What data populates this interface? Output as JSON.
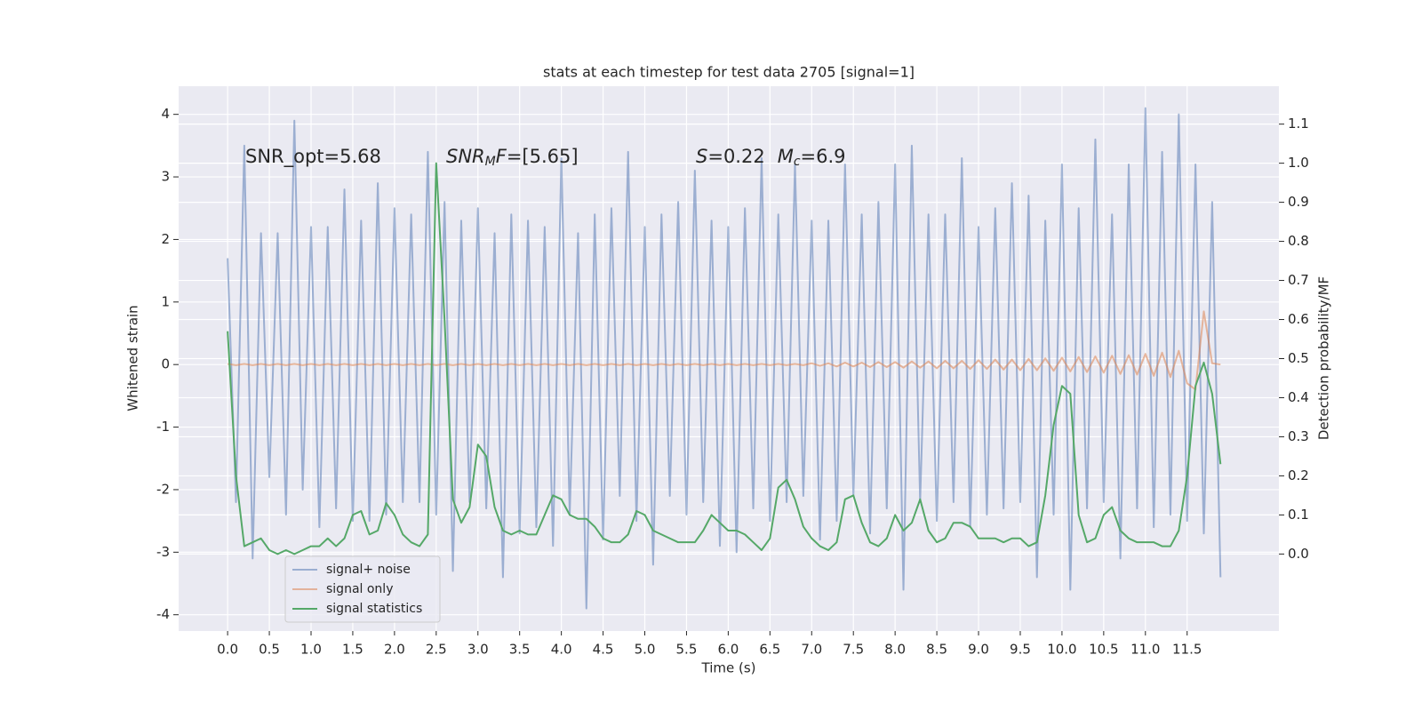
{
  "chart_data": {
    "type": "line",
    "title": "stats at each timestep for test data 2705 [signal=1]",
    "xlabel": "Time (s)",
    "ylabel": "Whitened strain",
    "y2label": "Detection probability/MF",
    "annotations": [
      "SNR_opt=5.68",
      [
        "SNR",
        "M",
        "F",
        "=[5.65]"
      ],
      [
        "S",
        "=0.22",
        "M",
        "c",
        "=6.9"
      ]
    ],
    "grid": true,
    "legend": "lower left",
    "xlim": [
      -0.587,
      12.6
    ],
    "ylim": [
      -4.26,
      4.45
    ],
    "y2lim": [
      -0.197,
      1.197
    ],
    "xticks": [
      {
        "value": 0,
        "label": "0.0"
      },
      0.5,
      {
        "value": 1,
        "label": "1.0"
      },
      1.5,
      {
        "value": 2,
        "label": "2.0"
      },
      2.5,
      {
        "value": 3,
        "label": "3.0"
      },
      3.5,
      {
        "value": 4,
        "label": "4.0"
      },
      4.5,
      {
        "value": 5,
        "label": "5.0"
      },
      5.5,
      {
        "value": 6,
        "label": "6.0"
      },
      6.5,
      {
        "value": 7,
        "label": "7.0"
      },
      7.5,
      {
        "value": 8,
        "label": "8.0"
      },
      8.5,
      {
        "value": 9,
        "label": "9.0"
      },
      9.5,
      {
        "value": 10,
        "label": "10.0"
      },
      10.5,
      {
        "value": 11,
        "label": "11.0"
      },
      11.5
    ],
    "yticks": [
      4,
      3,
      2,
      1,
      0,
      -1,
      -2,
      -3,
      -4
    ],
    "y2ticks": [
      {
        "value": 0,
        "label": "0.0"
      },
      0.1,
      0.2,
      0.3,
      0.4,
      0.5,
      0.6,
      0.7,
      0.8,
      0.9,
      {
        "value": 1,
        "label": "1.0"
      },
      1.1
    ],
    "x": [
      0,
      0.1,
      0.2,
      0.3,
      0.4,
      0.5,
      0.6,
      0.7,
      0.8,
      0.9,
      1,
      1.1,
      1.2,
      1.3,
      1.4,
      1.5,
      1.6,
      1.7,
      1.8,
      1.9,
      2,
      2.1,
      2.2,
      2.3,
      2.4,
      2.5,
      2.6,
      2.7,
      2.8,
      2.9,
      3,
      3.1,
      3.2,
      3.3,
      3.4,
      3.5,
      3.6,
      3.7,
      3.8,
      3.9,
      4,
      4.1,
      4.2,
      4.3,
      4.4,
      4.5,
      4.6,
      4.7,
      4.8,
      4.9,
      5,
      5.1,
      5.2,
      5.3,
      5.4,
      5.5,
      5.6,
      5.7,
      5.8,
      5.9,
      6,
      6.1,
      6.2,
      6.3,
      6.4,
      6.5,
      6.6,
      6.7,
      6.8,
      6.9,
      7,
      7.1,
      7.2,
      7.3,
      7.4,
      7.5,
      7.6,
      7.7,
      7.8,
      7.9,
      8,
      8.1,
      8.2,
      8.3,
      8.4,
      8.5,
      8.6,
      8.7,
      8.8,
      8.9,
      9,
      9.1,
      9.2,
      9.3,
      9.4,
      9.5,
      9.6,
      9.7,
      9.8,
      9.9,
      10,
      10.1,
      10.2,
      10.3,
      10.4,
      10.5,
      10.6,
      10.7,
      10.8,
      10.9,
      11,
      11.1,
      11.2,
      11.3,
      11.4,
      11.5,
      11.6,
      11.7,
      11.8,
      11.9
    ],
    "series": [
      {
        "name": "signal+ noise",
        "color": "#4c72b0",
        "axis": "y",
        "values": [
          1.7,
          -2.2,
          3.5,
          -3.1,
          2.1,
          -1.8,
          2.1,
          -2.4,
          3.9,
          -2.0,
          2.2,
          -2.6,
          2.2,
          -2.3,
          2.8,
          -2.5,
          2.3,
          -2.5,
          2.9,
          -2.4,
          2.5,
          -2.2,
          2.4,
          -2.2,
          3.4,
          -2.4,
          2.6,
          -3.3,
          2.3,
          -2.2,
          2.5,
          -2.3,
          2.1,
          -3.4,
          2.4,
          -2.7,
          2.3,
          -2.6,
          2.2,
          -2.9,
          3.3,
          -2.4,
          2.1,
          -3.9,
          2.4,
          -2.8,
          2.5,
          -2.1,
          3.4,
          -2.5,
          2.2,
          -3.2,
          2.4,
          -2.1,
          2.6,
          -2.4,
          3.1,
          -2.2,
          2.3,
          -2.9,
          2.2,
          -3.0,
          2.5,
          -2.3,
          3.3,
          -2.5,
          2.4,
          -2.2,
          3.2,
          -2.1,
          2.3,
          -2.8,
          2.3,
          -2.5,
          3.2,
          -2.1,
          2.4,
          -2.7,
          2.6,
          -2.3,
          3.2,
          -3.6,
          3.5,
          -2.2,
          2.4,
          -2.5,
          2.4,
          -2.2,
          3.3,
          -2.6,
          2.2,
          -2.4,
          2.5,
          -2.3,
          2.9,
          -2.2,
          2.7,
          -3.4,
          2.3,
          -2.4,
          3.2,
          -3.6,
          2.5,
          -2.3,
          3.6,
          -2.2,
          2.4,
          -3.1,
          3.2,
          -2.3,
          4.1,
          -2.6,
          3.4,
          -2.4,
          4.0,
          -2.5,
          3.2,
          -2.7,
          2.6,
          -3.4
        ]
      },
      {
        "name": "signal only",
        "color": "#dd8452",
        "axis": "y",
        "values": [
          0.01,
          -0.01,
          0.01,
          -0.01,
          0.01,
          -0.01,
          0.01,
          -0.01,
          0.01,
          -0.01,
          0.01,
          -0.01,
          0.01,
          -0.01,
          0.01,
          -0.01,
          0.01,
          -0.01,
          0.01,
          -0.01,
          0.01,
          -0.01,
          0.01,
          -0.01,
          0.01,
          -0.01,
          0.01,
          -0.01,
          0.01,
          -0.01,
          0.01,
          -0.01,
          0.01,
          -0.01,
          0.01,
          -0.01,
          0.01,
          -0.01,
          0.01,
          -0.01,
          0.01,
          -0.01,
          0.01,
          -0.01,
          0.01,
          -0.01,
          0.01,
          -0.01,
          0.01,
          -0.01,
          0.01,
          -0.01,
          0.01,
          -0.01,
          0.01,
          -0.01,
          0.01,
          -0.01,
          0.01,
          -0.01,
          0.01,
          -0.01,
          0.01,
          -0.01,
          0.01,
          -0.01,
          0.01,
          -0.01,
          0.01,
          -0.01,
          0.02,
          -0.02,
          0.02,
          -0.03,
          0.03,
          -0.03,
          0.03,
          -0.04,
          0.04,
          -0.04,
          0.04,
          -0.05,
          0.05,
          -0.05,
          0.05,
          -0.06,
          0.06,
          -0.06,
          0.06,
          -0.07,
          0.07,
          -0.07,
          0.08,
          -0.08,
          0.08,
          -0.09,
          0.09,
          -0.09,
          0.1,
          -0.1,
          0.11,
          -0.11,
          0.12,
          -0.12,
          0.13,
          -0.13,
          0.14,
          -0.15,
          0.15,
          -0.16,
          0.17,
          -0.18,
          0.19,
          -0.2,
          0.22,
          -0.3,
          -0.4,
          0.85,
          0.02,
          0.0
        ]
      },
      {
        "name": "signal statistics",
        "color": "#55a868",
        "axis": "y2",
        "values": [
          0.57,
          0.2,
          0.02,
          0.03,
          0.04,
          0.01,
          0.0,
          0.01,
          0.0,
          0.01,
          0.02,
          0.02,
          0.04,
          0.02,
          0.04,
          0.1,
          0.11,
          0.05,
          0.06,
          0.13,
          0.1,
          0.05,
          0.03,
          0.02,
          0.05,
          1.0,
          0.6,
          0.14,
          0.08,
          0.12,
          0.28,
          0.25,
          0.12,
          0.06,
          0.05,
          0.06,
          0.05,
          0.05,
          0.1,
          0.15,
          0.14,
          0.1,
          0.09,
          0.09,
          0.07,
          0.04,
          0.03,
          0.03,
          0.05,
          0.11,
          0.1,
          0.06,
          0.05,
          0.04,
          0.03,
          0.03,
          0.03,
          0.06,
          0.1,
          0.08,
          0.06,
          0.06,
          0.05,
          0.03,
          0.01,
          0.04,
          0.17,
          0.19,
          0.14,
          0.07,
          0.04,
          0.02,
          0.01,
          0.03,
          0.14,
          0.15,
          0.08,
          0.03,
          0.02,
          0.04,
          0.1,
          0.06,
          0.08,
          0.14,
          0.06,
          0.03,
          0.04,
          0.08,
          0.08,
          0.07,
          0.04,
          0.04,
          0.04,
          0.03,
          0.04,
          0.04,
          0.02,
          0.03,
          0.15,
          0.33,
          0.43,
          0.41,
          0.1,
          0.03,
          0.04,
          0.1,
          0.12,
          0.06,
          0.04,
          0.03,
          0.03,
          0.03,
          0.02,
          0.02,
          0.06,
          0.2,
          0.43,
          0.49,
          0.41,
          0.23
        ]
      }
    ]
  }
}
